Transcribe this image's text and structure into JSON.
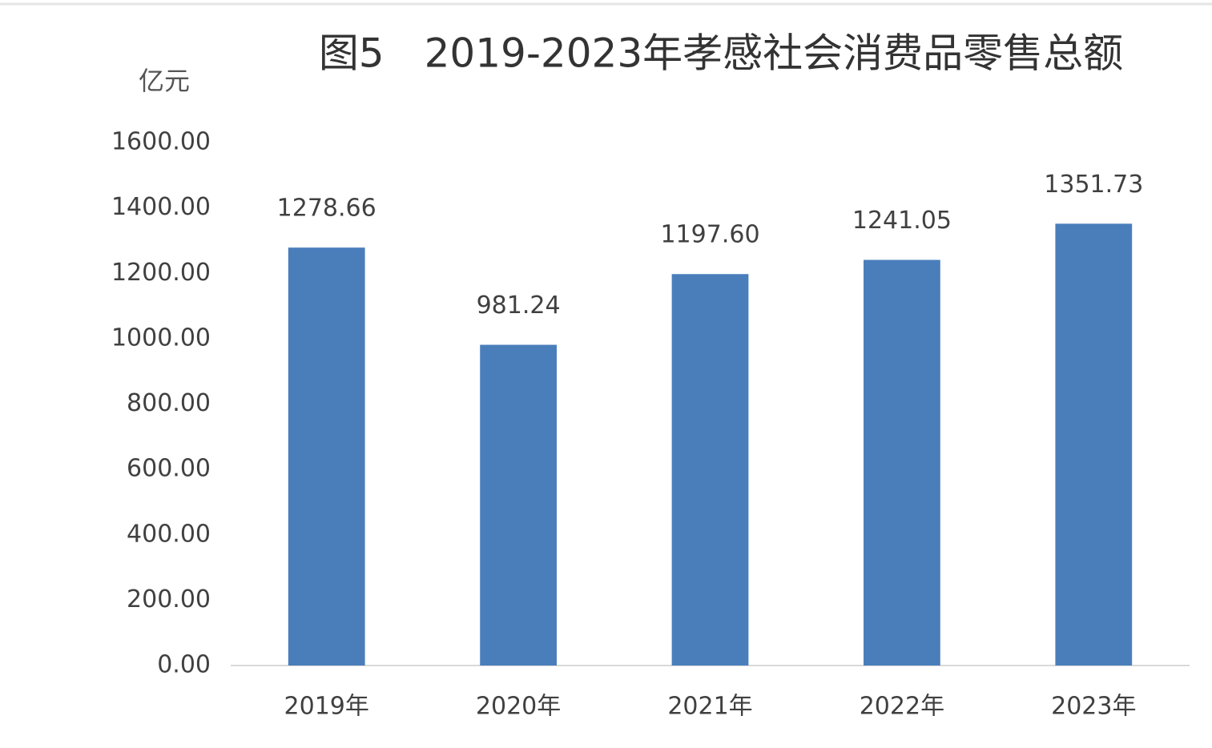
{
  "chart_data": {
    "type": "bar",
    "title": "图5　2019-2023年孝感社会消费品零售总额",
    "y_label": "亿元",
    "categories": [
      "2019年",
      "2020年",
      "2021年",
      "2022年",
      "2023年"
    ],
    "values": [
      1278.66,
      981.24,
      1197.6,
      1241.05,
      1351.73
    ],
    "value_labels": [
      "1278.66",
      "981.24",
      "1197.60",
      "1241.05",
      "1351.73"
    ],
    "color": "#4a7ebb",
    "ylim": [
      0,
      1600
    ],
    "yticks": [
      {
        "value": 0,
        "label": "0.00"
      },
      {
        "value": 200,
        "label": "200.00"
      },
      {
        "value": 400,
        "label": "400.00"
      },
      {
        "value": 600,
        "label": "600.00"
      },
      {
        "value": 800,
        "label": "800.00"
      },
      {
        "value": 1000,
        "label": "1000.00"
      },
      {
        "value": 1200,
        "label": "1200.00"
      },
      {
        "value": 1400,
        "label": "1400.00"
      },
      {
        "value": 1600,
        "label": "1600.00"
      }
    ],
    "grid": false
  }
}
